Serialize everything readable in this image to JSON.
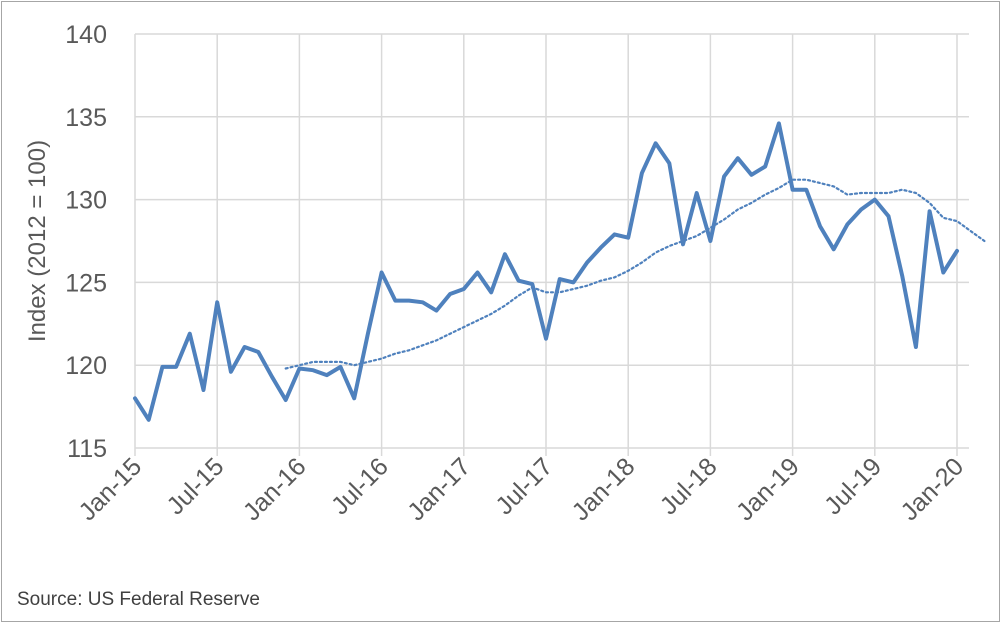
{
  "chart_data": {
    "type": "line",
    "ylabel": "Index (2012 = 100)",
    "ylim": [
      115,
      140
    ],
    "yticks": [
      115,
      120,
      125,
      130,
      135,
      140
    ],
    "xtick_labels": [
      "Jan-15",
      "Jul-15",
      "Jan-16",
      "Jul-16",
      "Jan-17",
      "Jul-17",
      "Jan-18",
      "Jul-18",
      "Jan-19",
      "Jul-19",
      "Jan-20"
    ],
    "xtick_months": [
      0,
      6,
      12,
      18,
      24,
      30,
      36,
      42,
      48,
      54,
      60
    ],
    "x_range_months": [
      0,
      60
    ],
    "grid": "vertical and horizontal",
    "colors": {
      "series": "#4f81bd",
      "grid": "#d9d9d9",
      "text": "#595959"
    },
    "series": [
      {
        "style": "solid",
        "start": "Jan-15",
        "values": [
          118.0,
          116.7,
          119.9,
          119.9,
          121.9,
          118.5,
          123.8,
          119.6,
          121.1,
          120.8,
          119.3,
          117.9,
          119.8,
          119.7,
          119.4,
          119.9,
          118.0,
          121.9,
          125.6,
          123.9,
          123.9,
          123.8,
          123.3,
          124.3,
          124.6,
          125.6,
          124.4,
          126.7,
          125.1,
          124.9,
          121.6,
          125.2,
          125.0,
          126.2,
          127.1,
          127.9,
          127.7,
          131.6,
          133.4,
          132.2,
          127.3,
          130.4,
          127.5,
          131.4,
          132.5,
          131.5,
          132.0,
          134.6,
          130.6,
          130.6,
          128.4,
          127.0,
          128.5,
          129.4,
          130.0,
          129.0,
          125.4,
          121.1,
          129.3,
          125.6,
          126.9
        ]
      },
      {
        "style": "dotted",
        "start": "Dec-15",
        "values": [
          119.8,
          120.0,
          120.2,
          120.2,
          120.2,
          120.0,
          120.2,
          120.4,
          120.7,
          120.9,
          121.2,
          121.5,
          121.9,
          122.3,
          122.7,
          123.1,
          123.6,
          124.2,
          124.7,
          124.4,
          124.4,
          124.6,
          124.8,
          125.1,
          125.3,
          125.7,
          126.2,
          126.8,
          127.2,
          127.5,
          127.8,
          128.3,
          128.8,
          129.4,
          129.8,
          130.3,
          130.7,
          131.2,
          131.2,
          131.0,
          130.8,
          130.3,
          130.4,
          130.4,
          130.4,
          130.6,
          130.4,
          129.8,
          128.9,
          128.7,
          128.1,
          127.5
        ]
      }
    ]
  },
  "source_text": "Source: US Federal Reserve"
}
